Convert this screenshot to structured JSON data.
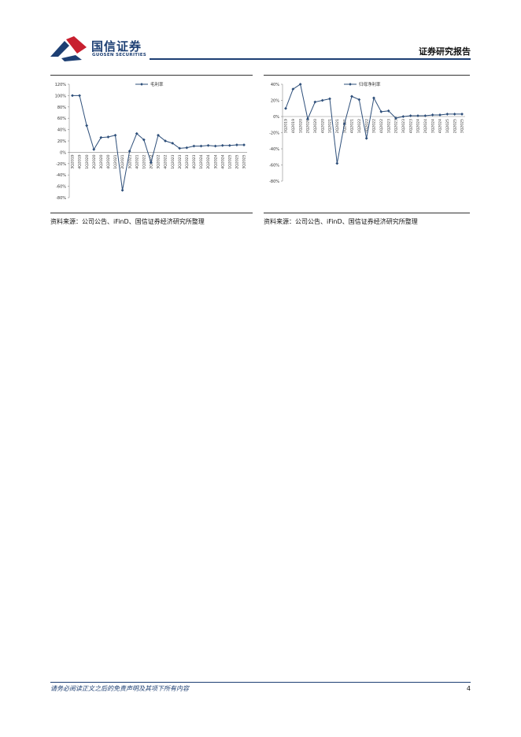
{
  "header": {
    "logo_cn": "国信证券",
    "logo_en": "GUOSEN SECURITIES",
    "doc_type": "证券研究报告"
  },
  "figures": [
    {
      "source": "资料来源：公司公告、iFinD、国信证券经济研究所整理",
      "chart_data": {
        "type": "line",
        "legend_position": "top",
        "grid": false,
        "series": [
          {
            "name": "毛利率",
            "color": "#2e4f7a"
          }
        ],
        "categories": [
          "3Q2019",
          "4Q2019",
          "1Q2020",
          "2Q2020",
          "3Q2020",
          "4Q2020",
          "1Q2021",
          "2Q2021",
          "3Q2021",
          "4Q2021",
          "1Q2022",
          "2Q2022",
          "3Q2022",
          "4Q2022",
          "1Q2023",
          "2Q2023",
          "3Q2023",
          "4Q2023",
          "1Q2024",
          "2Q2024",
          "3Q2024",
          "4Q2024",
          "1Q2025",
          "2Q2025",
          "3Q2025"
        ],
        "values": [
          100,
          100,
          47,
          5,
          26,
          27,
          30,
          -67,
          2,
          33,
          22,
          -18,
          30,
          20,
          16,
          7,
          8,
          11,
          11,
          12,
          11,
          12,
          12,
          13,
          13
        ],
        "ylim": [
          -80,
          120
        ],
        "yticks": [
          120,
          100,
          80,
          60,
          40,
          20,
          0,
          -20,
          -40,
          -60,
          -80
        ],
        "ytick_labels": [
          "120%",
          "100%",
          "80%",
          "60%",
          "40%",
          "20%",
          "0%",
          "-20%",
          "-40%",
          "-60%",
          "-80%"
        ]
      }
    },
    {
      "source": "资料来源：公司公告、iFinD、国信证券经济研究所整理",
      "chart_data": {
        "type": "line",
        "legend_position": "top",
        "grid": false,
        "series": [
          {
            "name": "归母净利率",
            "color": "#2e4f7a"
          }
        ],
        "categories": [
          "3Q2019",
          "4Q2019",
          "1Q2020",
          "2Q2020",
          "3Q2020",
          "4Q2020",
          "1Q2021",
          "2Q2021",
          "3Q2021",
          "4Q2021",
          "1Q2022",
          "2Q2022",
          "3Q2022",
          "4Q2022",
          "1Q2023",
          "2Q2023",
          "3Q2023",
          "4Q2023",
          "1Q2024",
          "2Q2024",
          "3Q2024",
          "4Q2024",
          "1Q2025",
          "2Q2025",
          "3Q2025"
        ],
        "values": [
          10,
          34,
          40,
          -3,
          18,
          20,
          22,
          -58,
          -9,
          25,
          21,
          -27,
          23,
          6,
          7,
          -2,
          0,
          1,
          1,
          1,
          2,
          2,
          3,
          3,
          3
        ],
        "ylim": [
          -80,
          40
        ],
        "yticks": [
          40,
          20,
          0,
          -20,
          -40,
          -60,
          -80
        ],
        "ytick_labels": [
          "40%",
          "20%",
          "0%",
          "-20%",
          "-40%",
          "-60%",
          "-80%"
        ]
      }
    }
  ],
  "footer": {
    "disclaimer": "请务必阅读正文之后的免责声明及其项下所有内容",
    "page_number": "4"
  }
}
